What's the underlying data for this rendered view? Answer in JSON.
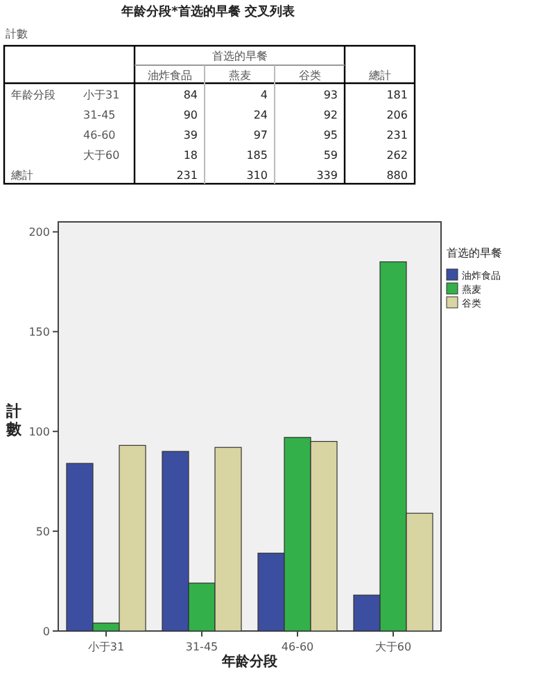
{
  "chart_data": {
    "type": "bar",
    "title": "年龄分段*首选的早餐 交叉列表",
    "xlabel": "年龄分段",
    "ylabel": "計數",
    "legend_title": "首选的早餐",
    "categories": [
      "小于31",
      "31-45",
      "46-60",
      "大于60"
    ],
    "series": [
      {
        "name": "油炸食品",
        "color": "#3c4ea0",
        "values": [
          84,
          90,
          39,
          18
        ]
      },
      {
        "name": "燕麦",
        "color": "#33b04a",
        "values": [
          4,
          24,
          97,
          185
        ]
      },
      {
        "name": "谷类",
        "color": "#d9d5a3",
        "values": [
          93,
          92,
          95,
          59
        ]
      }
    ],
    "ylim": [
      0,
      205
    ],
    "yticks": [
      0,
      50,
      100,
      150,
      200
    ],
    "annotations": [
      "計數",
      "總計",
      "84",
      "4",
      "93",
      "181",
      "90",
      "24",
      "92",
      "206",
      "39",
      "97",
      "95",
      "231",
      "18",
      "185",
      "59",
      "262",
      "231",
      "310",
      "339",
      "880"
    ],
    "legend": "right"
  }
}
